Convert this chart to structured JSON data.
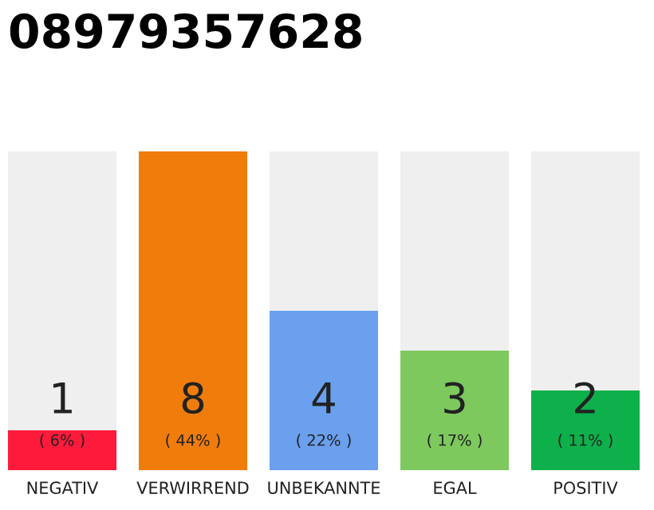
{
  "chart_data": {
    "type": "bar",
    "title": "08979357628",
    "categories": [
      "NEGATIV",
      "VERWIRREND",
      "UNBEKANNTE",
      "EGAL",
      "POSITIV"
    ],
    "values": [
      1,
      8,
      4,
      3,
      2
    ],
    "colors": [
      "#fe1a3b",
      "#f07c0c",
      "#6aa0ee",
      "#7dc95e",
      "#0db04a"
    ],
    "data_labels": true,
    "annotations": [
      "( 6% )",
      "( 44% )",
      "( 22% )",
      "( 17% )",
      "( 11% )"
    ],
    "grid": false,
    "legend": false
  }
}
